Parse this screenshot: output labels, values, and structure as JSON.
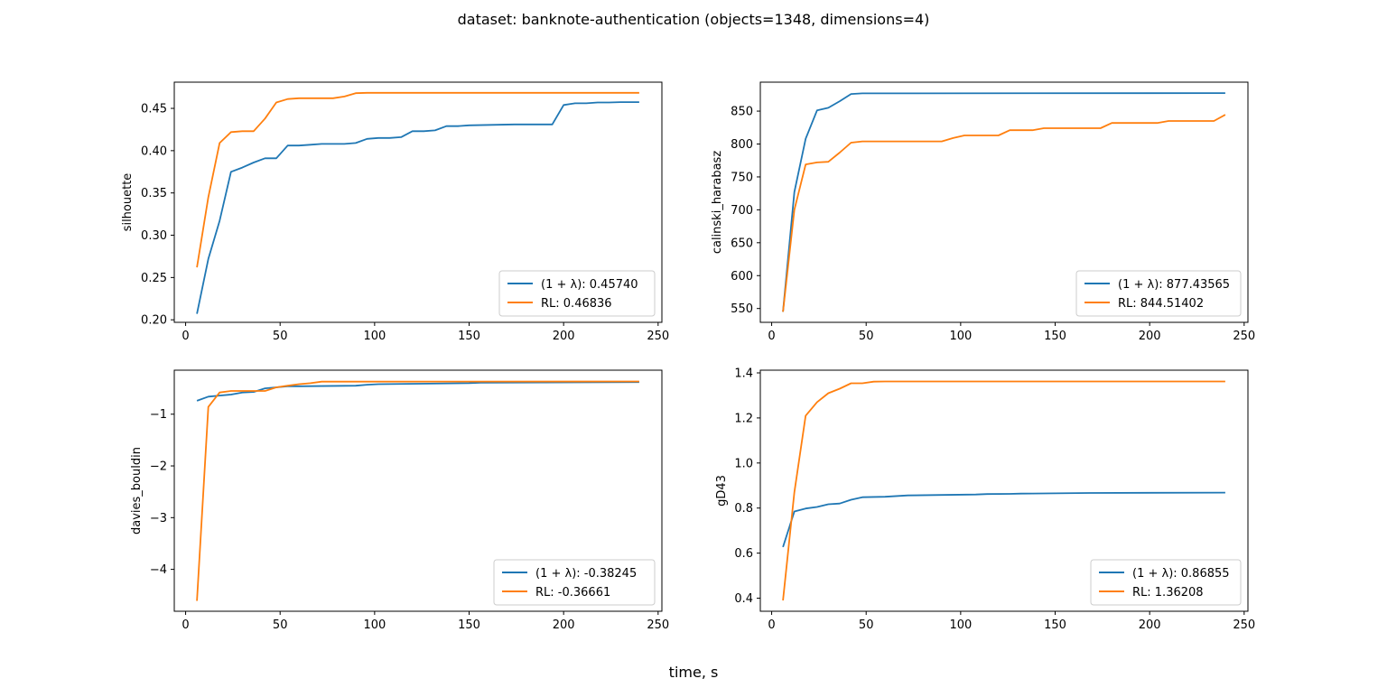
{
  "figure": {
    "title": "dataset: banknote-authentication (objects=1348, dimensions=4)",
    "xlabel": "time, s"
  },
  "colors": {
    "series1": "#1f77b4",
    "series2": "#ff7f0e"
  },
  "chart_data": [
    {
      "type": "line",
      "ylabel": "silhouette",
      "xlim": [
        -6,
        252
      ],
      "ylim": [
        0.197,
        0.481
      ],
      "xticks": [
        0,
        50,
        100,
        150,
        200,
        250
      ],
      "yticks": [
        0.2,
        0.25,
        0.3,
        0.35,
        0.4,
        0.45
      ],
      "ytick_labels": [
        "0.20",
        "0.25",
        "0.30",
        "0.35",
        "0.40",
        "0.45"
      ],
      "legend_position": "lower-right",
      "series": [
        {
          "name": "(1 + λ): 0.45740",
          "x": [
            6,
            12,
            18,
            24,
            30,
            36,
            42,
            48,
            54,
            60,
            66,
            72,
            78,
            84,
            90,
            96,
            102,
            108,
            114,
            120,
            126,
            132,
            138,
            144,
            150,
            174,
            194,
            200,
            206,
            212,
            218,
            224,
            230,
            240
          ],
          "y": [
            0.207,
            0.272,
            0.317,
            0.375,
            0.38,
            0.386,
            0.391,
            0.391,
            0.406,
            0.406,
            0.407,
            0.408,
            0.408,
            0.408,
            0.409,
            0.414,
            0.415,
            0.415,
            0.416,
            0.423,
            0.423,
            0.424,
            0.429,
            0.429,
            0.43,
            0.431,
            0.431,
            0.454,
            0.456,
            0.456,
            0.457,
            0.457,
            0.4574,
            0.4574
          ]
        },
        {
          "name": "RL: 0.46836",
          "x": [
            6,
            12,
            18,
            24,
            30,
            36,
            42,
            48,
            54,
            60,
            66,
            72,
            78,
            84,
            90,
            96,
            240
          ],
          "y": [
            0.262,
            0.345,
            0.409,
            0.422,
            0.423,
            0.423,
            0.438,
            0.457,
            0.461,
            0.462,
            0.462,
            0.462,
            0.462,
            0.464,
            0.468,
            0.4684,
            0.4684
          ]
        }
      ]
    },
    {
      "type": "line",
      "ylabel": "calinski_harabasz",
      "xlim": [
        -6,
        252
      ],
      "ylim": [
        529,
        894
      ],
      "xticks": [
        0,
        50,
        100,
        150,
        200,
        250
      ],
      "yticks": [
        550,
        600,
        650,
        700,
        750,
        800,
        850
      ],
      "ytick_labels": [
        "550",
        "600",
        "650",
        "700",
        "750",
        "800",
        "850"
      ],
      "legend_position": "lower-right",
      "series": [
        {
          "name": "(1 + λ): 877.43565",
          "x": [
            6,
            12,
            18,
            24,
            30,
            36,
            42,
            48,
            240
          ],
          "y": [
            545,
            727,
            808,
            851,
            855,
            865,
            876,
            877,
            877.4
          ]
        },
        {
          "name": "RL: 844.51402",
          "x": [
            6,
            12,
            18,
            24,
            30,
            36,
            42,
            48,
            54,
            60,
            90,
            96,
            102,
            108,
            120,
            126,
            138,
            144,
            156,
            174,
            180,
            186,
            204,
            210,
            216,
            234,
            240
          ],
          "y": [
            545,
            700,
            769,
            772,
            773,
            787,
            802,
            804,
            804,
            804,
            804,
            809,
            813,
            813,
            813,
            821,
            821,
            824,
            824,
            824,
            832,
            832,
            832,
            835,
            835,
            835,
            844.5
          ]
        }
      ]
    },
    {
      "type": "line",
      "ylabel": "davies_bouldin",
      "xlim": [
        -6,
        252
      ],
      "ylim": [
        -4.81,
        -0.149
      ],
      "xticks": [
        0,
        50,
        100,
        150,
        200,
        250
      ],
      "yticks": [
        -4,
        -3,
        -2,
        -1
      ],
      "ytick_labels": [
        "−4",
        "−3",
        "−2",
        "−1"
      ],
      "legend_position": "lower-right",
      "series": [
        {
          "name": "(1 + λ): -0.38245",
          "x": [
            6,
            12,
            18,
            24,
            30,
            36,
            42,
            48,
            54,
            60,
            90,
            96,
            102,
            150,
            156,
            240
          ],
          "y": [
            -0.74,
            -0.66,
            -0.64,
            -0.62,
            -0.58,
            -0.57,
            -0.5,
            -0.48,
            -0.46,
            -0.46,
            -0.45,
            -0.43,
            -0.42,
            -0.4,
            -0.39,
            -0.38
          ]
        },
        {
          "name": "RL: -0.36661",
          "x": [
            6,
            12,
            18,
            24,
            30,
            36,
            42,
            48,
            54,
            60,
            66,
            72,
            240
          ],
          "y": [
            -4.61,
            -0.86,
            -0.58,
            -0.55,
            -0.55,
            -0.55,
            -0.55,
            -0.48,
            -0.45,
            -0.42,
            -0.4,
            -0.37,
            -0.367
          ]
        }
      ]
    },
    {
      "type": "line",
      "ylabel": "gD43",
      "xlim": [
        -6,
        252
      ],
      "ylim": [
        0.342,
        1.412
      ],
      "xticks": [
        0,
        50,
        100,
        150,
        200,
        250
      ],
      "yticks": [
        0.4,
        0.6,
        0.8,
        1.0,
        1.2,
        1.4
      ],
      "ytick_labels": [
        "0.4",
        "0.6",
        "0.8",
        "1.0",
        "1.2",
        "1.4"
      ],
      "legend_position": "lower-right",
      "series": [
        {
          "name": "(1 + λ): 0.86855",
          "x": [
            6,
            12,
            18,
            24,
            30,
            36,
            42,
            48,
            60,
            72,
            90,
            108,
            114,
            126,
            132,
            144,
            168,
            240
          ],
          "y": [
            0.627,
            0.785,
            0.798,
            0.805,
            0.817,
            0.82,
            0.837,
            0.848,
            0.85,
            0.856,
            0.858,
            0.86,
            0.862,
            0.863,
            0.864,
            0.865,
            0.867,
            0.8686
          ]
        },
        {
          "name": "RL: 1.36208",
          "x": [
            6,
            12,
            18,
            24,
            30,
            36,
            42,
            48,
            54,
            60,
            90,
            240
          ],
          "y": [
            0.39,
            0.87,
            1.21,
            1.27,
            1.31,
            1.33,
            1.354,
            1.354,
            1.361,
            1.362,
            1.362,
            1.362
          ]
        }
      ]
    }
  ]
}
